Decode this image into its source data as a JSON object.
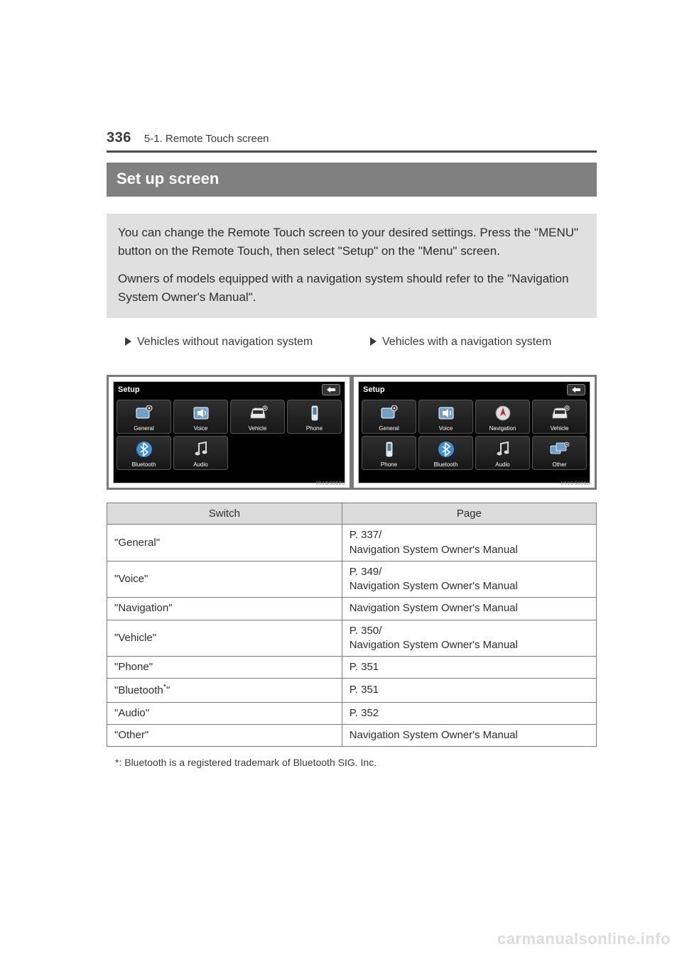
{
  "header": {
    "page_number": "336",
    "section_path": "5-1. Remote Touch screen"
  },
  "banner": "Set up screen",
  "callout": {
    "p1": "You can change the Remote Touch screen to your desired settings. Press the \"MENU\" button on the Remote Touch, then select \"Setup\" on the \"Menu\" screen.",
    "p2": "Owners of models equipped with a navigation system should refer to the \"Navigation System Owner's Manual\"."
  },
  "columns": {
    "left_heading": "Vehicles without navigation system",
    "right_heading": "Vehicles with a navigation system"
  },
  "left_screenshot": {
    "title": "Setup",
    "code": "II51GS062U",
    "icons": [
      {
        "name": "general",
        "label": "General"
      },
      {
        "name": "voice",
        "label": "Voice"
      },
      {
        "name": "vehicle",
        "label": "Vehicle"
      },
      {
        "name": "phone",
        "label": "Phone"
      },
      {
        "name": "bluetooth",
        "label": "Bluetooth"
      },
      {
        "name": "audio",
        "label": "Audio"
      }
    ]
  },
  "right_screenshot": {
    "title": "Setup",
    "code": "II51GS006U",
    "icons": [
      {
        "name": "general",
        "label": "General"
      },
      {
        "name": "voice",
        "label": "Voice"
      },
      {
        "name": "navigation",
        "label": "Navigation"
      },
      {
        "name": "vehicle",
        "label": "Vehicle"
      },
      {
        "name": "phone",
        "label": "Phone"
      },
      {
        "name": "bluetooth",
        "label": "Bluetooth"
      },
      {
        "name": "audio",
        "label": "Audio"
      },
      {
        "name": "other",
        "label": "Other"
      }
    ]
  },
  "table": {
    "headers": {
      "switch": "Switch",
      "page": "Page"
    },
    "rows": [
      {
        "switch": "\"General\"",
        "page": "P. 337/\nNavigation System Owner's Manual"
      },
      {
        "switch": "\"Voice\"",
        "page": "P. 349/\nNavigation System Owner's Manual"
      },
      {
        "switch": "\"Navigation\"",
        "page": "Navigation System Owner's Manual"
      },
      {
        "switch": "\"Vehicle\"",
        "page": "P. 350/\nNavigation System Owner's Manual"
      },
      {
        "switch": "\"Phone\"",
        "page": "P. 351"
      },
      {
        "switch": "\"Bluetooth*\"",
        "page": "P. 351"
      },
      {
        "switch": "\"Audio\"",
        "page": "P. 352"
      },
      {
        "switch": "\"Other\"",
        "page": "Navigation System Owner's Manual"
      }
    ]
  },
  "footnote": "*: Bluetooth is a registered trademark of Bluetooth SIG. Inc.",
  "watermark": "carmanualsonline.info",
  "glyph_colors": {
    "general": "#6fa0c8",
    "voice": "#6fa0c8",
    "vehicle": "#e8e8e8",
    "phone": "#cfe3f2",
    "bluetooth": "#3f8fd6",
    "audio": "#d8d8d8",
    "navigation": "#b03030",
    "other": "#6fa0c8"
  }
}
